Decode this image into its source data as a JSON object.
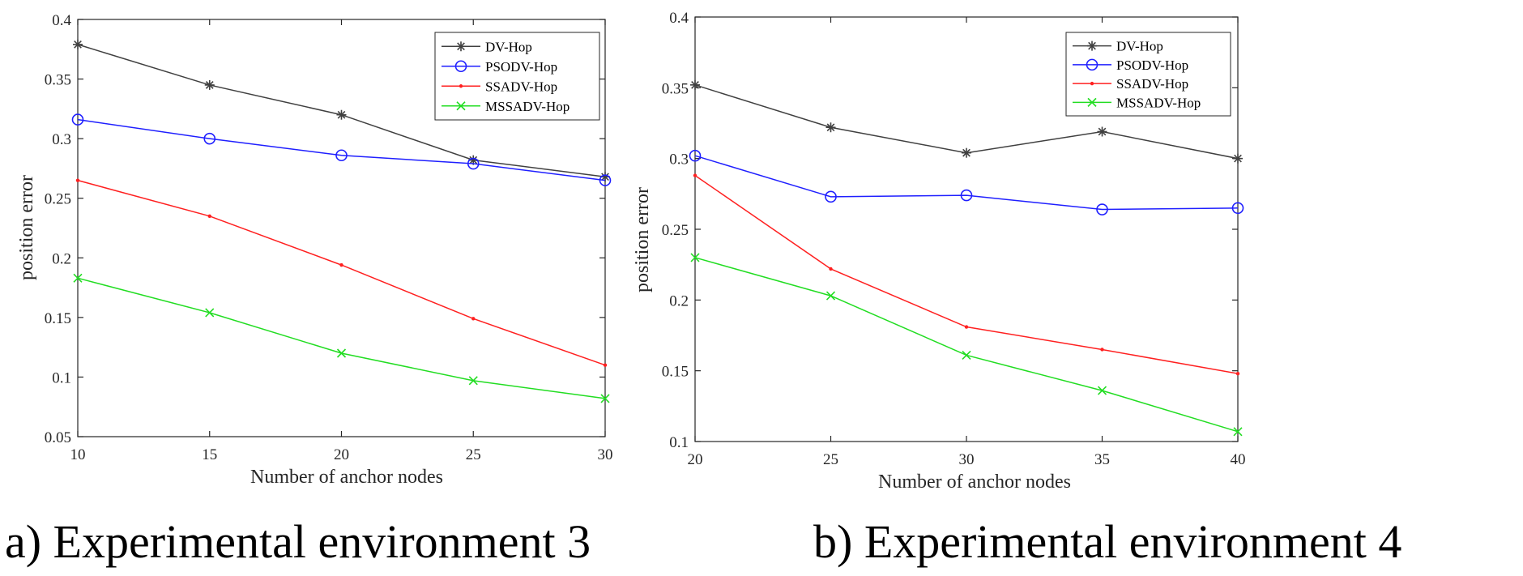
{
  "chart_data": [
    {
      "type": "line",
      "caption": "a) Experimental environment 3",
      "xlabel": "Number of anchor nodes",
      "ylabel": "position error",
      "xlim": [
        10,
        30
      ],
      "ylim": [
        0.05,
        0.4
      ],
      "xticks": [
        "10",
        "15",
        "20",
        "25",
        "30"
      ],
      "yticks": [
        "0.05",
        "0.1",
        "0.15",
        "0.2",
        "0.25",
        "0.3",
        "0.35",
        "0.4"
      ],
      "legend_position": "top-right",
      "grid": false,
      "x": [
        10,
        15,
        20,
        25,
        30
      ],
      "series": [
        {
          "name": "DV-Hop",
          "marker": "asterisk",
          "color": "#404040",
          "values": [
            0.379,
            0.345,
            0.32,
            0.282,
            0.268
          ]
        },
        {
          "name": "PSODV-Hop",
          "marker": "circle",
          "color": "#1f1fff",
          "values": [
            0.316,
            0.3,
            0.286,
            0.279,
            0.265
          ]
        },
        {
          "name": "SSADV-Hop",
          "marker": "dot",
          "color": "#ff2020",
          "values": [
            0.265,
            0.235,
            0.194,
            0.149,
            0.11
          ]
        },
        {
          "name": "MSSADV-Hop",
          "marker": "x",
          "color": "#22dd22",
          "values": [
            0.183,
            0.154,
            0.12,
            0.097,
            0.082
          ]
        }
      ]
    },
    {
      "type": "line",
      "caption": "b) Experimental environment 4",
      "xlabel": "Number of anchor nodes",
      "ylabel": "position error",
      "xlim": [
        20,
        40
      ],
      "ylim": [
        0.1,
        0.4
      ],
      "xticks": [
        "20",
        "25",
        "30",
        "35",
        "40"
      ],
      "yticks": [
        "0.1",
        "0.15",
        "0.2",
        "0.25",
        "0.3",
        "0.35",
        "0.4"
      ],
      "legend_position": "top-right",
      "grid": false,
      "x": [
        20,
        25,
        30,
        35,
        40
      ],
      "series": [
        {
          "name": "DV-Hop",
          "marker": "asterisk",
          "color": "#404040",
          "values": [
            0.352,
            0.322,
            0.304,
            0.319,
            0.3
          ]
        },
        {
          "name": "PSODV-Hop",
          "marker": "circle",
          "color": "#1f1fff",
          "values": [
            0.302,
            0.273,
            0.274,
            0.264,
            0.265
          ]
        },
        {
          "name": "SSADV-Hop",
          "marker": "dot",
          "color": "#ff2020",
          "values": [
            0.288,
            0.222,
            0.181,
            0.165,
            0.148
          ]
        },
        {
          "name": "MSSADV-Hop",
          "marker": "x",
          "color": "#22dd22",
          "values": [
            0.23,
            0.203,
            0.161,
            0.136,
            0.107
          ]
        }
      ]
    }
  ]
}
